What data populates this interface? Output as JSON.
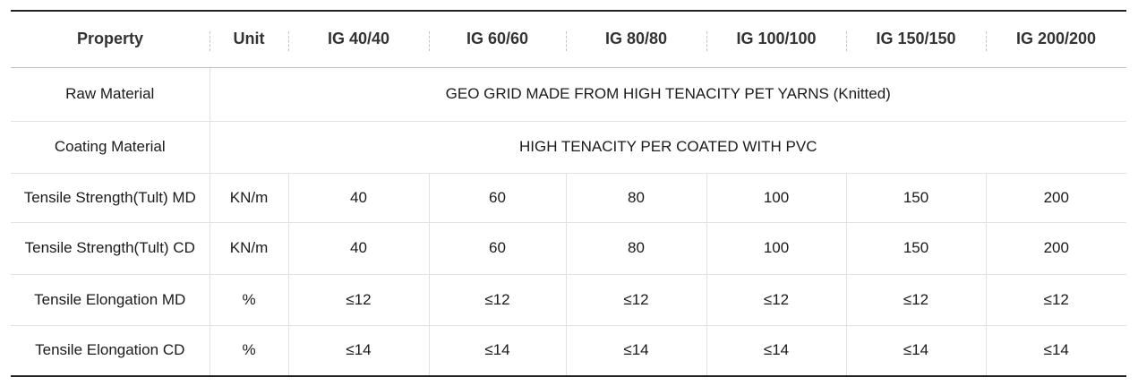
{
  "header": [
    "Property",
    "Unit",
    "IG 40/40",
    "IG 60/60",
    "IG 80/80",
    "IG 100/100",
    "IG 150/150",
    "IG 200/200"
  ],
  "raw_material": {
    "label": "Raw Material",
    "value": "GEO GRID MADE FROM HIGH TENACITY PET YARNS (Knitted)"
  },
  "coating_material": {
    "label": "Coating Material",
    "value": "HIGH TENACITY PER COATED WITH PVC"
  },
  "rows": [
    {
      "property": "Tensile Strength(Tult) MD",
      "unit": "KN/m",
      "values": [
        "40",
        "60",
        "80",
        "100",
        "150",
        "200"
      ]
    },
    {
      "property": "Tensile Strength(Tult) CD",
      "unit": "KN/m",
      "values": [
        "40",
        "60",
        "80",
        "100",
        "150",
        "200"
      ]
    },
    {
      "property": "Tensile Elongation MD",
      "unit": "%",
      "values": [
        "≤12",
        "≤12",
        "≤12",
        "≤12",
        "≤12",
        "≤12"
      ]
    },
    {
      "property": "Tensile Elongation CD",
      "unit": "%",
      "values": [
        "≤14",
        "≤14",
        "≤14",
        "≤14",
        "≤14",
        "≤14"
      ]
    }
  ]
}
